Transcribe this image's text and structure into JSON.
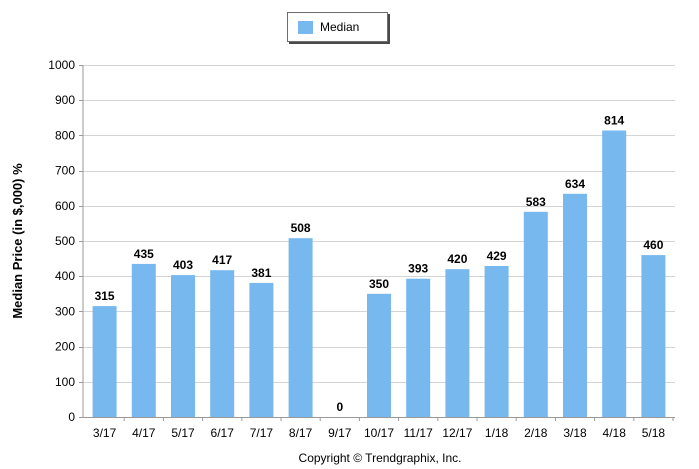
{
  "chart_data": {
    "type": "bar",
    "categories": [
      "3/17",
      "4/17",
      "5/17",
      "6/17",
      "7/17",
      "8/17",
      "9/17",
      "10/17",
      "11/17",
      "12/17",
      "1/18",
      "2/18",
      "3/18",
      "4/18",
      "5/18"
    ],
    "series": [
      {
        "name": "Median",
        "values": [
          315,
          435,
          403,
          417,
          381,
          508,
          0,
          350,
          393,
          420,
          429,
          583,
          634,
          814,
          460
        ]
      }
    ],
    "ylabel": "Median Price (in $,000) %",
    "xlabel": "",
    "ylim": [
      0,
      1000
    ],
    "yticks": [
      0,
      100,
      200,
      300,
      400,
      500,
      600,
      700,
      800,
      900,
      1000
    ],
    "grid": true,
    "legend": "top-center",
    "data_labels": true,
    "bar_color": "#77b8ef"
  },
  "footer": {
    "copyright": "Copyright © Trendgraphix, Inc."
  }
}
